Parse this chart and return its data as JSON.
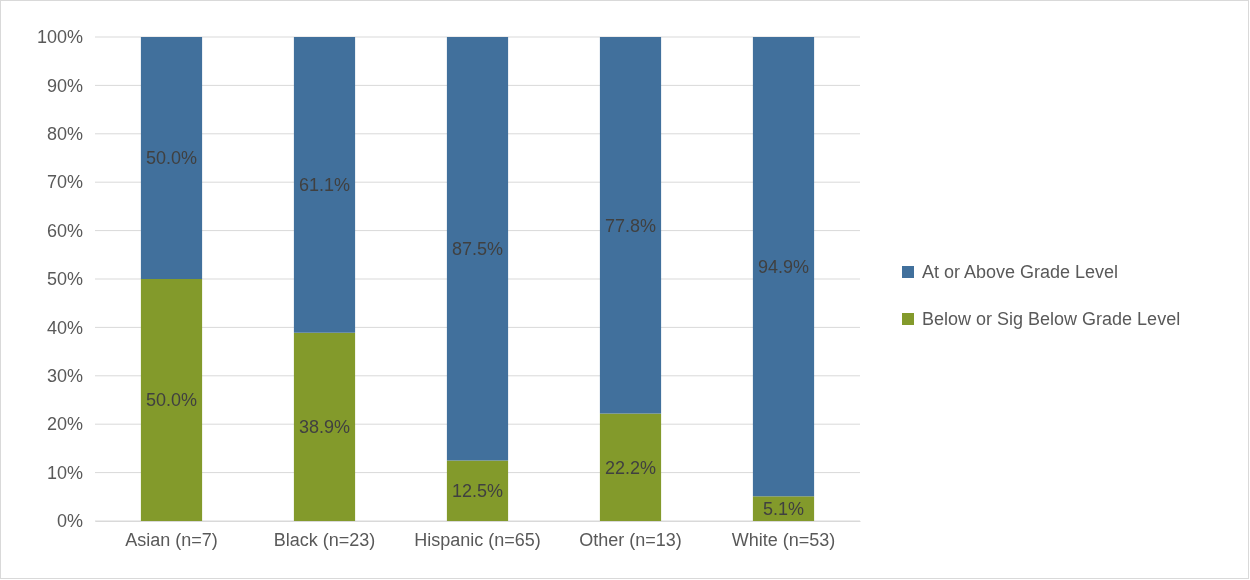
{
  "chart_data": {
    "type": "bar",
    "stacked": true,
    "categories": [
      "Asian (n=7)",
      "Black (n=23)",
      "Hispanic (n=65)",
      "Other (n=13)",
      "White (n=53)"
    ],
    "series": [
      {
        "name": "Below or Sig Below Grade Level",
        "color": "#839a2b",
        "values": [
          50,
          38.9,
          12.5,
          22.2,
          5.1
        ],
        "value_labels": [
          "50.0%",
          "38.9%",
          "12.5%",
          "22.2%",
          "5.1%"
        ]
      },
      {
        "name": "At or Above Grade Level",
        "color": "#41709c",
        "values": [
          50,
          61.1,
          87.5,
          77.8,
          94.9
        ],
        "value_labels": [
          "50.0%",
          "61.1%",
          "87.5%",
          "77.8%",
          "94.9%"
        ]
      }
    ],
    "ylim": [
      0,
      100
    ],
    "yticks": [
      {
        "value": 0,
        "label": "0%"
      },
      {
        "value": 10,
        "label": "10%"
      },
      {
        "value": 20,
        "label": "20%"
      },
      {
        "value": 30,
        "label": "30%"
      },
      {
        "value": 40,
        "label": "40%"
      },
      {
        "value": 50,
        "label": "50%"
      },
      {
        "value": 60,
        "label": "60%"
      },
      {
        "value": 70,
        "label": "70%"
      },
      {
        "value": 80,
        "label": "80%"
      },
      {
        "value": 90,
        "label": "90%"
      },
      {
        "value": 100,
        "label": "100%"
      }
    ],
    "grid": "y",
    "legend": "right"
  }
}
